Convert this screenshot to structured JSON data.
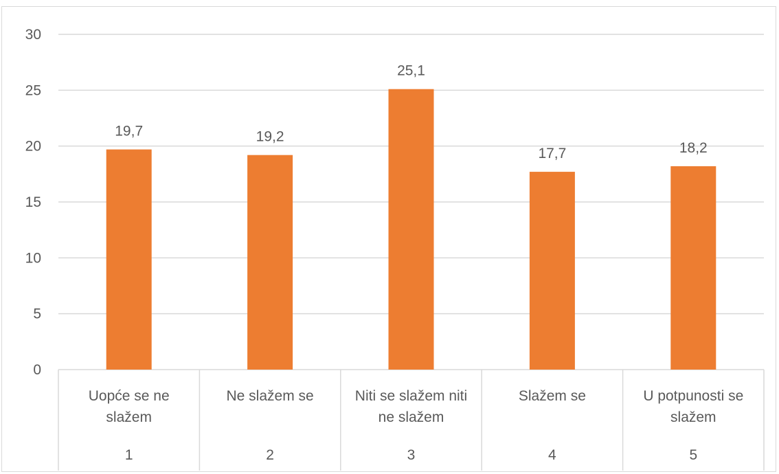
{
  "chart_data": {
    "type": "bar",
    "categories": [
      {
        "label_lines": [
          "Uopće se ne",
          "slažem"
        ],
        "number": "1"
      },
      {
        "label_lines": [
          "Ne slažem se"
        ],
        "number": "2"
      },
      {
        "label_lines": [
          "Niti se slažem niti",
          "ne slažem"
        ],
        "number": "3"
      },
      {
        "label_lines": [
          "Slažem se"
        ],
        "number": "4"
      },
      {
        "label_lines": [
          "U potpunosti se",
          "slažem"
        ],
        "number": "5"
      }
    ],
    "values": [
      19.7,
      19.2,
      25.1,
      17.7,
      18.2
    ],
    "data_labels": [
      "19,7",
      "19,2",
      "25,1",
      "17,7",
      "18,2"
    ],
    "ylim": [
      0,
      30
    ],
    "yticks": [
      "0",
      "5",
      "10",
      "15",
      "20",
      "25",
      "30"
    ],
    "grid": true,
    "colors": {
      "bar": "#ED7D31",
      "grid": "#d9d9d9",
      "text": "#595959"
    }
  }
}
